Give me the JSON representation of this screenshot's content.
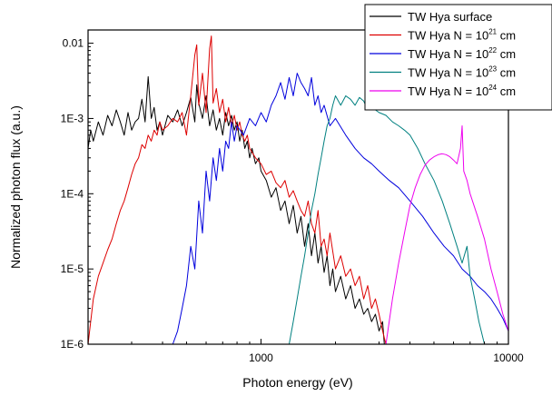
{
  "chart_data": {
    "type": "line",
    "title": "",
    "xlabel": "Photon energy (eV)",
    "ylabel": "Normalized photon flux (a.u.)",
    "x_scale": "log",
    "y_scale": "log",
    "xlim": [
      200,
      10000
    ],
    "ylim": [
      1e-06,
      0.015
    ],
    "x_ticks": [
      {
        "value": 1000,
        "label": "1000"
      },
      {
        "value": 10000,
        "label": "10000"
      }
    ],
    "y_ticks": [
      {
        "value": 1e-06,
        "label": "1E-6"
      },
      {
        "value": 1e-05,
        "label": "1E-5"
      },
      {
        "value": 0.0001,
        "label": "1E-4"
      },
      {
        "value": 0.001,
        "label": "1E-3"
      },
      {
        "value": 0.01,
        "label": "0.01"
      }
    ],
    "grid": false,
    "legend_position": "top-right",
    "series": [
      {
        "name": "TW Hya surface",
        "legend": {
          "prefix": "TW Hya surface",
          "exp": "",
          "suffix": ""
        },
        "color": "#000000",
        "x": [
          200,
          205,
          210,
          220,
          230,
          240,
          250,
          260,
          270,
          280,
          290,
          300,
          310,
          320,
          330,
          340,
          350,
          360,
          370,
          380,
          390,
          400,
          420,
          440,
          460,
          480,
          500,
          520,
          540,
          550,
          560,
          580,
          600,
          620,
          640,
          660,
          680,
          700,
          720,
          740,
          760,
          780,
          800,
          820,
          840,
          860,
          880,
          900,
          920,
          950,
          980,
          1000,
          1050,
          1100,
          1150,
          1200,
          1250,
          1300,
          1350,
          1400,
          1450,
          1500,
          1550,
          1600,
          1650,
          1700,
          1750,
          1800,
          1850,
          1900,
          1950,
          2000,
          2100,
          2200,
          2300,
          2400,
          2500,
          2600,
          2700,
          2800,
          2900,
          3000,
          3100,
          3150
        ],
        "y": [
          0.0004,
          0.0007,
          0.0005,
          0.0009,
          0.0006,
          0.0011,
          0.0008,
          0.0013,
          0.0009,
          0.0006,
          0.0012,
          0.0007,
          0.0009,
          0.001,
          0.0018,
          0.0009,
          0.0036,
          0.001,
          0.0014,
          0.0007,
          0.0009,
          0.0006,
          0.0011,
          0.0009,
          0.0013,
          0.0008,
          0.0012,
          0.0019,
          0.0009,
          0.0028,
          0.0016,
          0.001,
          0.002,
          0.0008,
          0.0013,
          0.0007,
          0.001,
          0.0006,
          0.0012,
          0.0008,
          0.0011,
          0.0007,
          0.0009,
          0.0005,
          0.0007,
          0.0004,
          0.0005,
          0.0003,
          0.0004,
          0.00025,
          0.0003,
          0.0002,
          0.00015,
          9e-05,
          0.00012,
          6e-05,
          8e-05,
          4e-05,
          7e-05,
          3e-05,
          5e-05,
          2e-05,
          4e-05,
          1.5e-05,
          3e-05,
          1.2e-05,
          2e-05,
          9e-06,
          1.5e-05,
          6e-06,
          1e-05,
          5e-06,
          8e-06,
          4e-06,
          6e-06,
          3e-06,
          4e-06,
          2.5e-06,
          3e-06,
          2e-06,
          2.5e-06,
          1.5e-06,
          2e-06,
          1e-06
        ]
      },
      {
        "name": "TW Hya N = 10^21 cm^-2",
        "legend": {
          "prefix": "TW Hya N = 10",
          "exp": "21",
          "suffix": " cm"
        },
        "color": "#dd0000",
        "x": [
          200,
          210,
          220,
          230,
          240,
          250,
          260,
          270,
          280,
          290,
          300,
          310,
          320,
          330,
          340,
          350,
          360,
          370,
          380,
          390,
          400,
          420,
          440,
          460,
          480,
          500,
          520,
          540,
          550,
          560,
          580,
          600,
          620,
          630,
          640,
          660,
          680,
          700,
          720,
          740,
          760,
          780,
          800,
          820,
          840,
          860,
          880,
          900,
          950,
          1000,
          1050,
          1100,
          1150,
          1200,
          1250,
          1300,
          1350,
          1400,
          1450,
          1500,
          1550,
          1600,
          1650,
          1700,
          1750,
          1800,
          1850,
          1900,
          2000,
          2100,
          2200,
          2300,
          2400,
          2500,
          2600,
          2700,
          2800,
          2900,
          3000,
          3100,
          3200
        ],
        "y": [
          1e-06,
          4e-06,
          8e-06,
          1.2e-05,
          1.8e-05,
          2.5e-05,
          4e-05,
          6e-05,
          8e-05,
          0.00012,
          0.00018,
          0.00025,
          0.0003,
          0.00045,
          0.0004,
          0.0006,
          0.0005,
          0.0007,
          0.0006,
          0.0009,
          0.0007,
          0.0008,
          0.001,
          0.0009,
          0.0012,
          0.0006,
          0.002,
          0.007,
          0.0095,
          0.0015,
          0.004,
          0.0012,
          0.0085,
          0.0125,
          0.0016,
          0.0025,
          0.0012,
          0.0018,
          0.0009,
          0.0014,
          0.0008,
          0.0011,
          0.0007,
          0.0009,
          0.0006,
          0.0005,
          0.0006,
          0.0004,
          0.0003,
          0.00025,
          0.00018,
          0.0002,
          0.00014,
          0.00012,
          0.00015,
          9e-05,
          0.00011,
          8e-05,
          6e-05,
          5e-05,
          8e-05,
          4e-05,
          3e-05,
          6e-05,
          2e-05,
          2.5e-05,
          1.5e-05,
          3e-05,
          1e-05,
          1.5e-05,
          8e-06,
          1e-05,
          6e-06,
          8e-06,
          4e-06,
          6e-06,
          3e-06,
          4e-06,
          2.5e-06,
          1.5e-06,
          1e-06
        ]
      },
      {
        "name": "TW Hya N = 10^22 cm^-2",
        "legend": {
          "prefix": "TW Hya N = 10",
          "exp": "22",
          "suffix": " cm"
        },
        "color": "#0000dd",
        "x": [
          440,
          460,
          480,
          500,
          520,
          540,
          560,
          580,
          600,
          620,
          640,
          660,
          680,
          700,
          720,
          740,
          760,
          780,
          800,
          850,
          900,
          950,
          1000,
          1050,
          1100,
          1150,
          1200,
          1250,
          1300,
          1350,
          1400,
          1450,
          1500,
          1550,
          1600,
          1650,
          1700,
          1750,
          1800,
          1900,
          2000,
          2200,
          2400,
          2600,
          2800,
          3000,
          3300,
          3600,
          4000,
          4500,
          5000,
          5500,
          6000,
          6500,
          7000,
          7500,
          8000,
          8500,
          9000,
          9500,
          10000
        ],
        "y": [
          1e-06,
          1.5e-06,
          3e-06,
          6e-06,
          2e-05,
          1e-05,
          8e-05,
          3e-05,
          0.0002,
          8e-05,
          0.0003,
          0.00015,
          0.0004,
          0.0002,
          0.0005,
          0.0004,
          0.0009,
          0.0005,
          0.0008,
          0.0006,
          0.001,
          0.0008,
          0.0012,
          0.0009,
          0.0015,
          0.002,
          0.003,
          0.0018,
          0.0035,
          0.002,
          0.004,
          0.003,
          0.0025,
          0.002,
          0.0035,
          0.0015,
          0.002,
          0.0012,
          0.0015,
          0.0008,
          0.001,
          0.0006,
          0.0004,
          0.0003,
          0.00025,
          0.0002,
          0.00015,
          0.00012,
          8e-05,
          5e-05,
          3e-05,
          2e-05,
          1.5e-05,
          1e-05,
          8e-06,
          6e-06,
          5e-06,
          4e-06,
          3e-06,
          2.2e-06,
          1.5e-06
        ]
      },
      {
        "name": "TW Hya N = 10^23 cm^-2",
        "legend": {
          "prefix": "TW Hya N = 10",
          "exp": "23",
          "suffix": " cm"
        },
        "color": "#008080",
        "x": [
          1300,
          1350,
          1400,
          1450,
          1500,
          1550,
          1600,
          1650,
          1700,
          1750,
          1800,
          1850,
          1900,
          1950,
          2000,
          2100,
          2200,
          2300,
          2400,
          2500,
          2600,
          2700,
          2800,
          2900,
          3000,
          3200,
          3400,
          3600,
          3800,
          4000,
          4300,
          4600,
          5000,
          5400,
          5800,
          6200,
          6500,
          6800,
          7000,
          7300,
          7600,
          8000
        ],
        "y": [
          1e-06,
          2e-06,
          4e-06,
          8e-06,
          1.5e-05,
          3e-05,
          6e-05,
          0.0001,
          0.00018,
          0.0003,
          0.0005,
          0.0008,
          0.001,
          0.0015,
          0.002,
          0.0015,
          0.002,
          0.0018,
          0.0015,
          0.0019,
          0.0017,
          0.0013,
          0.002,
          0.0013,
          0.0012,
          0.0011,
          0.0009,
          0.0008,
          0.0007,
          0.0006,
          0.0004,
          0.00025,
          0.00015,
          8e-05,
          4e-05,
          2e-05,
          1.2e-05,
          2e-05,
          8e-06,
          4e-06,
          2e-06,
          1e-06
        ]
      },
      {
        "name": "TW Hya N = 10^24 cm^-2",
        "legend": {
          "prefix": "TW Hya N = 10",
          "exp": "24",
          "suffix": " cm"
        },
        "color": "#ee00ee",
        "x": [
          3200,
          3400,
          3600,
          3800,
          4000,
          4200,
          4400,
          4600,
          4800,
          5000,
          5200,
          5400,
          5600,
          5800,
          6000,
          6200,
          6400,
          6500,
          6600,
          6800,
          7000,
          7500,
          8000,
          8500,
          9000,
          9500,
          10000
        ],
        "y": [
          1e-06,
          4e-06,
          1.2e-05,
          3e-05,
          7e-05,
          0.00012,
          0.00018,
          0.00024,
          0.00028,
          0.00031,
          0.00033,
          0.00034,
          0.00033,
          0.00031,
          0.00028,
          0.00025,
          0.0004,
          0.0008,
          0.0002,
          0.00015,
          0.0001,
          5e-05,
          2.5e-05,
          1e-05,
          5e-06,
          2.5e-06,
          1.5e-06
        ]
      }
    ]
  }
}
